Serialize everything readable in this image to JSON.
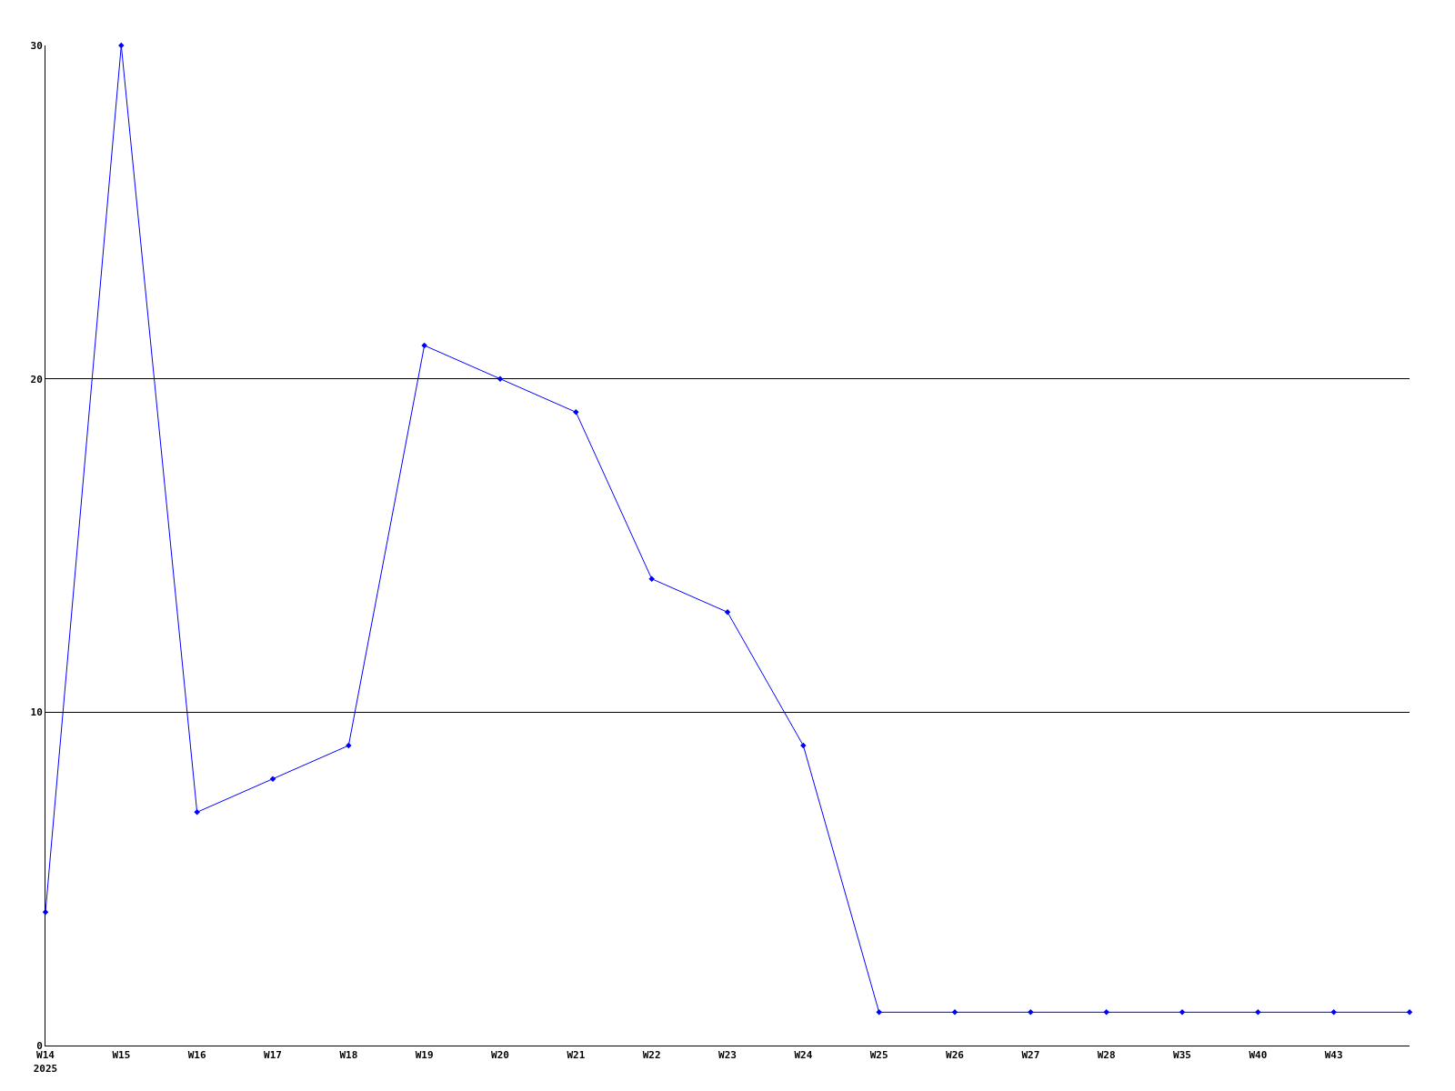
{
  "chart_data": {
    "type": "line",
    "categories": [
      "W14\n2025",
      "W15",
      "W16",
      "W17",
      "W18",
      "W19",
      "W20",
      "W21",
      "W22",
      "W23",
      "W24",
      "W25",
      "W26",
      "W27",
      "W28",
      "W35",
      "W40",
      "W43",
      null
    ],
    "series": [
      {
        "color": "#0000ff",
        "values": [
          4,
          30,
          7,
          8,
          9,
          21,
          20,
          19,
          14,
          13,
          9,
          1,
          1,
          1,
          1,
          1,
          1,
          1,
          1
        ]
      }
    ],
    "ylim": [
      0,
      30
    ],
    "yticks": [
      0,
      10,
      20,
      30
    ],
    "grid": "y",
    "marker": "diamond",
    "line_style": "solid"
  }
}
